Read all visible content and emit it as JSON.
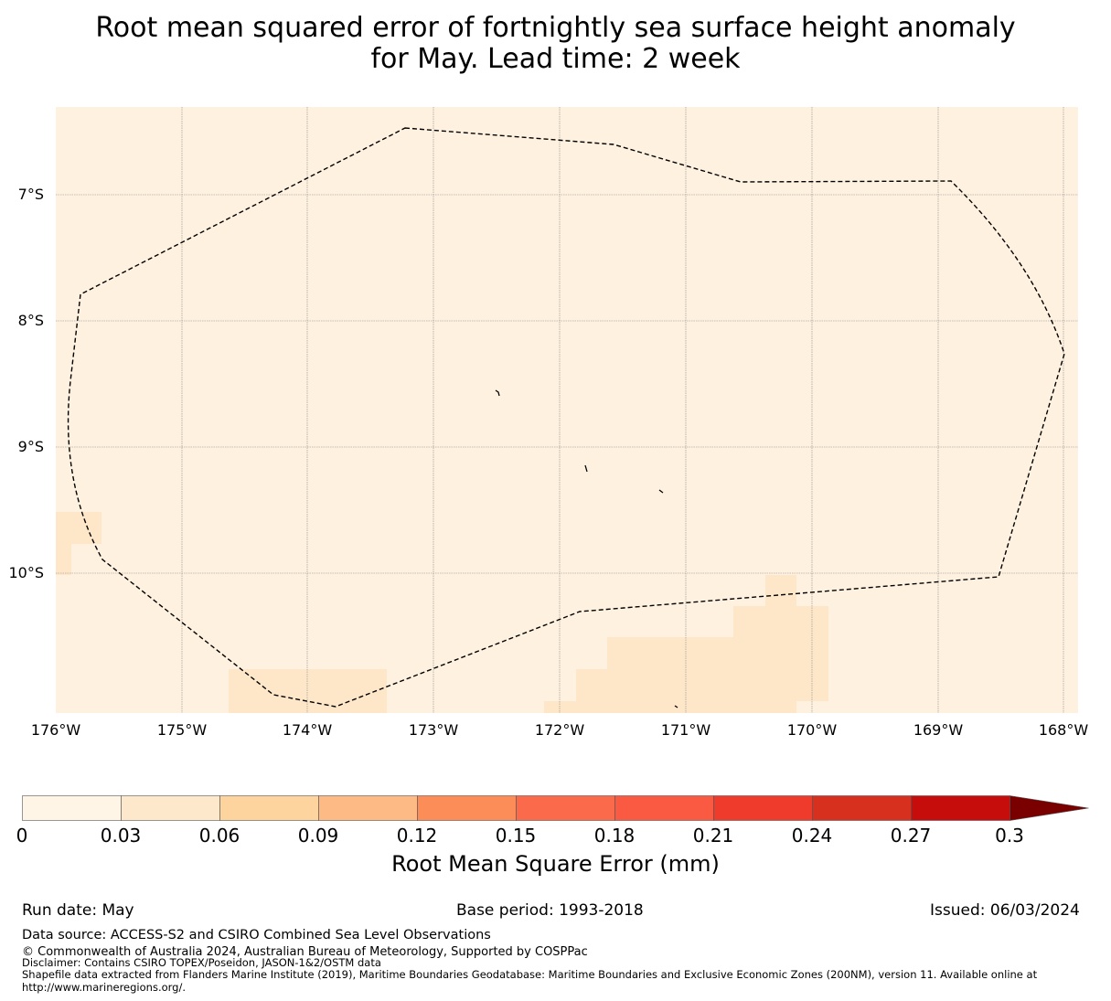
{
  "title_line1": "Root mean squared error of fortnightly sea surface height anomaly",
  "title_line2": "for May. Lead time: 2 week",
  "map": {
    "lat_ticks": [
      "7°S",
      "8°S",
      "9°S",
      "10°S"
    ],
    "lon_ticks": [
      "176°W",
      "175°W",
      "174°W",
      "173°W",
      "172°W",
      "171°W",
      "170°W",
      "169°W",
      "168°W"
    ],
    "background_color": "#fef1df",
    "patch_color": "#fee7c9",
    "boundary_style": "dashed"
  },
  "colorbar": {
    "label": "Root Mean Square Error (mm)",
    "ticks": [
      "0",
      "0.03",
      "0.06",
      "0.09",
      "0.12",
      "0.15",
      "0.18",
      "0.21",
      "0.24",
      "0.27",
      "0.3"
    ],
    "colors": [
      "#fff5e7",
      "#fee8cb",
      "#fdd49d",
      "#fdba84",
      "#fc8d59",
      "#fb6a4a",
      "#fa5a42",
      "#ef3b2c",
      "#d7301f",
      "#c70c0c",
      "#b00000"
    ],
    "extend_color": "#7a0000"
  },
  "footer": {
    "run_date": "Run date: May",
    "base_period": "Base period: 1993-2018",
    "issued": "Issued: 06/03/2024",
    "data_source": "Data source: ACCESS-S2 and CSIRO Combined Sea Level Observations",
    "copyright": "© Commonwealth of Australia 2024, Australian Bureau of Meteorology, Supported by COSPPac",
    "disclaimer": "Disclaimer: Contains CSIRO TOPEX/Poseidon, JASON-1&2/OSTM data",
    "shapefile": "Shapefile data extracted from Flanders Marine Institute (2019), Maritime Boundaries Geodatabase: Maritime Boundaries and Exclusive Economic Zones (200NM), version 11. Available online at http://www.marineregions.org/."
  }
}
